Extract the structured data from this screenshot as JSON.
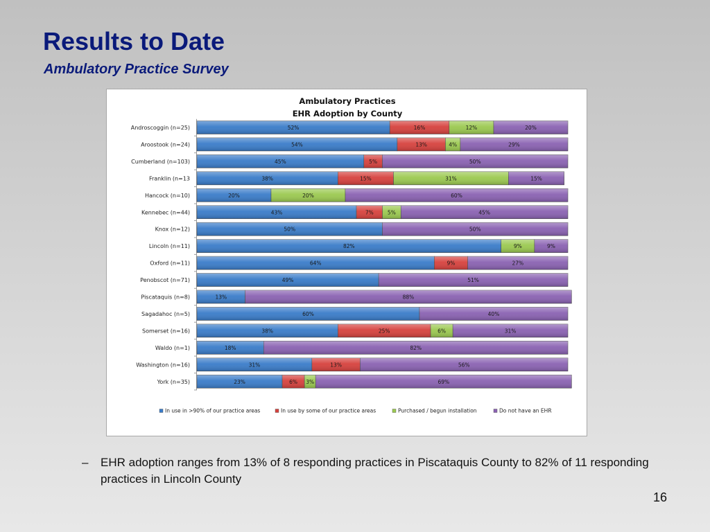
{
  "slide": {
    "title": "Results to Date",
    "subtitle": "Ambulatory Practice Survey",
    "bullet_dash": "–",
    "bullet": "EHR adoption ranges from 13% of 8 responding practices in Piscataquis County to 82% of 11 responding practices in Lincoln County",
    "page_number": "16"
  },
  "colors": {
    "in_use_90": "#3a7cc9",
    "in_use_some": "#d6413d",
    "purchased": "#9bc950",
    "no_ehr": "#8a62b2"
  },
  "chart_data": {
    "type": "bar",
    "orientation": "horizontal",
    "stacked": "percent",
    "title_lines": [
      "Ambulatory Practices",
      "EHR Adoption by County"
    ],
    "xlim": [
      0,
      100
    ],
    "grid": false,
    "legend_position": "bottom",
    "categories": [
      "Androscoggin (n=25)",
      "Aroostook (n=24)",
      "Cumberland (n=103)",
      "Franklin (n=13",
      "Hancock (n=10)",
      "Kennebec (n=44)",
      "Knox (n=12)",
      "Lincoln (n=11)",
      "Oxford (n=11)",
      "Penobscot (n=71)",
      "Piscataquis (n=8)",
      "Sagadahoc (n=5)",
      "Somerset (n=16)",
      "Waldo (n=1)",
      "Washington (n=16)",
      "York (n=35)"
    ],
    "series": [
      {
        "name": "In use in >90% of our practice areas",
        "color_key": "in_use_90",
        "values": [
          52,
          54,
          45,
          38,
          20,
          43,
          50,
          82,
          64,
          49,
          13,
          60,
          38,
          18,
          31,
          23
        ]
      },
      {
        "name": "In use by some of our practice areas",
        "color_key": "in_use_some",
        "values": [
          16,
          13,
          5,
          15,
          0,
          7,
          0,
          0,
          9,
          0,
          0,
          0,
          25,
          0,
          13,
          6
        ]
      },
      {
        "name": "Purchased / begun installation",
        "color_key": "purchased",
        "values": [
          12,
          4,
          0,
          31,
          20,
          5,
          0,
          9,
          0,
          0,
          0,
          0,
          6,
          0,
          0,
          3
        ]
      },
      {
        "name": "Do not have an EHR",
        "color_key": "no_ehr",
        "values": [
          20,
          29,
          50,
          15,
          60,
          45,
          50,
          9,
          27,
          51,
          88,
          40,
          31,
          82,
          56,
          69
        ]
      }
    ]
  }
}
